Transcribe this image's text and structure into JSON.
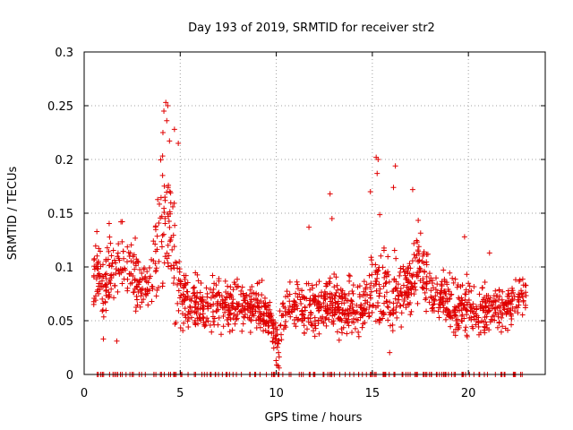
{
  "chart_data": {
    "type": "scatter",
    "title": "Day 193 of 2019, SRMTID for receiver str2",
    "xlabel": "GPS time / hours",
    "ylabel": "SRMTID / TECUs",
    "xlim": [
      0,
      24
    ],
    "ylim": [
      0,
      0.3
    ],
    "x_ticks": [
      0,
      5,
      10,
      15,
      20
    ],
    "x_tick_labels": [
      "0",
      "5",
      "10",
      "15",
      "20"
    ],
    "y_ticks": [
      0,
      0.05,
      0.1,
      0.15,
      0.2,
      0.25,
      0.3
    ],
    "y_tick_labels": [
      "0",
      "0.05",
      "0.1",
      "0.15",
      "0.2",
      "0.25",
      "0.3"
    ],
    "grid": true,
    "marker": "plus",
    "colors": {
      "points": "#e00000",
      "axes": "#000000",
      "grid": "#a0a0a0"
    },
    "envelope": {
      "x": [
        0.5,
        1.0,
        1.5,
        2.0,
        2.5,
        3.0,
        3.5,
        4.0,
        4.3,
        4.6,
        5.0,
        5.5,
        6.0,
        7.0,
        8.0,
        9.0,
        9.7,
        10.1,
        10.5,
        11.0,
        12.0,
        13.0,
        14.0,
        14.7,
        15.2,
        15.6,
        16.0,
        16.5,
        17.0,
        17.5,
        18.0,
        19.0,
        19.8,
        20.5,
        21.0,
        22.0,
        23.0
      ],
      "mean": [
        0.092,
        0.085,
        0.1,
        0.105,
        0.095,
        0.08,
        0.09,
        0.14,
        0.16,
        0.12,
        0.075,
        0.065,
        0.063,
        0.065,
        0.062,
        0.06,
        0.055,
        0.03,
        0.06,
        0.065,
        0.062,
        0.065,
        0.06,
        0.065,
        0.09,
        0.075,
        0.08,
        0.075,
        0.085,
        0.11,
        0.075,
        0.065,
        0.06,
        0.058,
        0.06,
        0.062,
        0.07
      ],
      "spread": [
        0.02,
        0.025,
        0.025,
        0.025,
        0.02,
        0.02,
        0.025,
        0.045,
        0.055,
        0.04,
        0.02,
        0.018,
        0.017,
        0.017,
        0.017,
        0.017,
        0.016,
        0.015,
        0.017,
        0.017,
        0.017,
        0.018,
        0.018,
        0.018,
        0.035,
        0.025,
        0.03,
        0.02,
        0.02,
        0.025,
        0.02,
        0.017,
        0.017,
        0.016,
        0.016,
        0.017,
        0.017
      ]
    },
    "spikes": [
      {
        "x": 4.25,
        "y": 0.253
      },
      {
        "x": 4.35,
        "y": 0.25
      },
      {
        "x": 4.15,
        "y": 0.245
      },
      {
        "x": 4.3,
        "y": 0.236
      },
      {
        "x": 4.7,
        "y": 0.228
      },
      {
        "x": 4.1,
        "y": 0.225
      },
      {
        "x": 4.9,
        "y": 0.215
      },
      {
        "x": 15.2,
        "y": 0.202
      },
      {
        "x": 15.3,
        "y": 0.2
      },
      {
        "x": 16.2,
        "y": 0.194
      },
      {
        "x": 15.25,
        "y": 0.187
      },
      {
        "x": 12.8,
        "y": 0.168
      },
      {
        "x": 14.9,
        "y": 0.17
      },
      {
        "x": 17.1,
        "y": 0.172
      },
      {
        "x": 16.1,
        "y": 0.174
      },
      {
        "x": 12.9,
        "y": 0.145
      },
      {
        "x": 11.7,
        "y": 0.137
      },
      {
        "x": 19.8,
        "y": 0.128
      },
      {
        "x": 21.1,
        "y": 0.113
      },
      {
        "x": 1.0,
        "y": 0.033
      },
      {
        "x": 1.7,
        "y": 0.031
      },
      {
        "x": 10.1,
        "y": 0.008
      },
      {
        "x": 10.15,
        "y": 0.006
      }
    ],
    "zero_row": {
      "y": 0,
      "x_start": 0.5,
      "x_end": 23.0,
      "count": 160
    },
    "point_count": 1600
  }
}
